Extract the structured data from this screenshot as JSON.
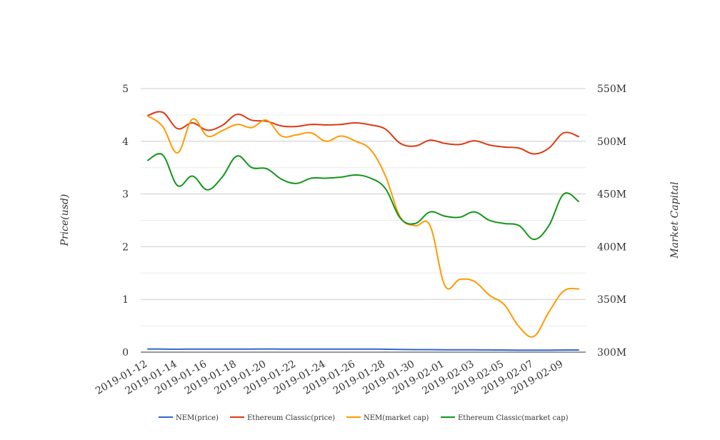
{
  "chart_data": {
    "type": "line",
    "x": [
      "2019-01-12",
      "2019-01-13",
      "2019-01-14",
      "2019-01-15",
      "2019-01-16",
      "2019-01-17",
      "2019-01-18",
      "2019-01-19",
      "2019-01-20",
      "2019-01-21",
      "2019-01-22",
      "2019-01-23",
      "2019-01-24",
      "2019-01-25",
      "2019-01-26",
      "2019-01-27",
      "2019-01-28",
      "2019-01-29",
      "2019-01-30",
      "2019-01-31",
      "2019-02-01",
      "2019-02-02",
      "2019-02-03",
      "2019-02-04",
      "2019-02-05",
      "2019-02-06",
      "2019-02-07",
      "2019-02-08",
      "2019-02-09",
      "2019-02-10"
    ],
    "x_tick_labels": [
      "2019-01-12",
      "2019-01-14",
      "2019-01-16",
      "2019-01-18",
      "2019-01-20",
      "2019-01-22",
      "2019-01-24",
      "2019-01-26",
      "2019-01-28",
      "2019-01-30",
      "2019-02-01",
      "2019-02-03",
      "2019-02-05",
      "2019-02-07",
      "2019-02-09"
    ],
    "y_left": {
      "label": "Price(usd)",
      "ylim": [
        0,
        5
      ],
      "ticks": [
        "0",
        "1",
        "2",
        "3",
        "4",
        "5"
      ]
    },
    "y_right": {
      "label": "Market Capital",
      "ylim": [
        300,
        550
      ],
      "ticks": [
        "300M",
        "350M",
        "400M",
        "450M",
        "500M",
        "550M"
      ]
    },
    "grid": true,
    "legend_position": "bottom",
    "series": [
      {
        "name": "NEM(price)",
        "axis": "left",
        "color": "#3366cc",
        "values": [
          0.06,
          0.058,
          0.056,
          0.058,
          0.057,
          0.058,
          0.058,
          0.058,
          0.059,
          0.058,
          0.058,
          0.058,
          0.057,
          0.058,
          0.058,
          0.057,
          0.055,
          0.05,
          0.048,
          0.047,
          0.044,
          0.044,
          0.043,
          0.042,
          0.04,
          0.038,
          0.036,
          0.038,
          0.04,
          0.04
        ]
      },
      {
        "name": "Ethereum Classic(price)",
        "axis": "left",
        "color": "#dc3912",
        "values": [
          4.49,
          4.55,
          4.24,
          4.35,
          4.21,
          4.3,
          4.51,
          4.4,
          4.38,
          4.29,
          4.28,
          4.32,
          4.31,
          4.32,
          4.35,
          4.31,
          4.23,
          3.96,
          3.91,
          4.02,
          3.96,
          3.94,
          4.01,
          3.93,
          3.89,
          3.87,
          3.76,
          3.87,
          4.16,
          4.09
        ]
      },
      {
        "name": "NEM(market cap)",
        "axis": "right",
        "color": "#ff9900",
        "values": [
          524,
          514,
          489,
          521,
          505,
          510,
          516,
          513,
          520,
          505,
          506,
          508,
          500,
          505,
          500,
          492,
          467,
          428,
          420,
          420,
          363,
          369,
          367,
          354,
          345,
          324,
          315,
          338,
          358,
          360
        ]
      },
      {
        "name": "Ethereum Classic(market cap)",
        "axis": "right",
        "color": "#109618",
        "values": [
          482,
          487,
          458,
          467,
          454,
          466,
          486,
          475,
          474,
          464,
          460,
          465,
          465,
          466,
          468,
          465,
          455,
          427,
          422,
          433,
          429,
          428,
          433,
          425,
          422,
          420,
          407,
          420,
          450,
          443
        ]
      }
    ]
  }
}
